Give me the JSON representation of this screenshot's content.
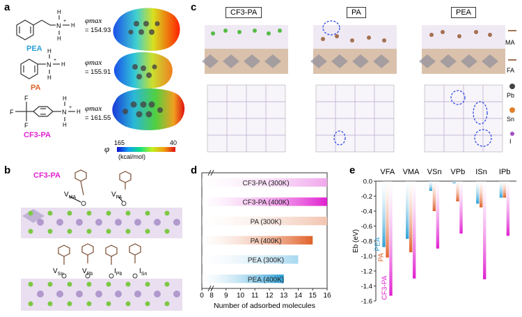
{
  "panels": {
    "a": "a",
    "b": "b",
    "c": "c",
    "d": "d",
    "e": "e"
  },
  "panel_a": {
    "molecules": [
      {
        "name": "PEA",
        "color": "#2aa0d8",
        "phi_label": "φmax",
        "phi_value": "= 154.93"
      },
      {
        "name": "PA",
        "color": "#e0622a",
        "phi_label": "φmax",
        "phi_value": "= 155.91"
      },
      {
        "name": "CF3-PA",
        "color": "#e020d0",
        "phi_label": "φmax",
        "phi_value": "= 161.55"
      }
    ],
    "colorbar": {
      "symbol": "φ",
      "min_label": "165",
      "max_label": "40",
      "unit": "(kcal/mol)"
    }
  },
  "panel_b": {
    "molecule_label": "CF3-PA",
    "vacancies_top": [
      "VMA",
      "VFA"
    ],
    "vacancies_bottom": [
      "VSn",
      "VPb",
      "IPb",
      "ISn"
    ]
  },
  "panel_c": {
    "column_titles": [
      "CF3-PA",
      "PA",
      "PEA"
    ],
    "legend": [
      "MA",
      "FA",
      "Pb",
      "Sn",
      "I"
    ]
  },
  "panel_d": {
    "chart_data": {
      "type": "bar",
      "orientation": "horizontal",
      "categories": [
        "CF3-PA (300K)",
        "CF3-PA (400K)",
        "PA (300K)",
        "PA (400K)",
        "PEA (300K)",
        "PEA (400K)"
      ],
      "values": [
        16,
        16,
        16,
        15,
        14,
        13
      ],
      "colors": [
        "#f0a8ec",
        "#e020d0",
        "#f2c4b0",
        "#e0622a",
        "#a8d8f0",
        "#2aa0d8"
      ],
      "xlabel": "Number of adsorbed molecules",
      "xlim": [
        8,
        16
      ],
      "x_ticks": [
        "0",
        "8",
        "9",
        "10",
        "11",
        "12",
        "13",
        "14",
        "15",
        "16"
      ],
      "axis_break": true
    }
  },
  "panel_e": {
    "chart_data": {
      "type": "bar",
      "categories": [
        "VFA",
        "VMA",
        "VSn",
        "VPb",
        "ISn",
        "IPb"
      ],
      "series": [
        {
          "name": "PEA",
          "color": "#2aa0d8",
          "values": [
            -0.88,
            -0.77,
            -0.13,
            -0.03,
            -0.3,
            -0.22
          ]
        },
        {
          "name": "PA",
          "color": "#e0622a",
          "values": [
            -1.02,
            -0.95,
            -0.4,
            -0.27,
            -0.35,
            -0.22
          ]
        },
        {
          "name": "CF3-PA",
          "color": "#e020d0",
          "values": [
            -1.53,
            -1.3,
            -0.9,
            -0.7,
            -1.31,
            -0.73
          ]
        }
      ],
      "ylabel": "Eb (eV)",
      "ylim": [
        -1.6,
        0.0
      ],
      "y_ticks": [
        "0.0",
        "-0.2",
        "-0.4",
        "-0.6",
        "-0.8",
        "-1.0",
        "-1.2",
        "-1.4",
        "-1.6"
      ]
    }
  }
}
